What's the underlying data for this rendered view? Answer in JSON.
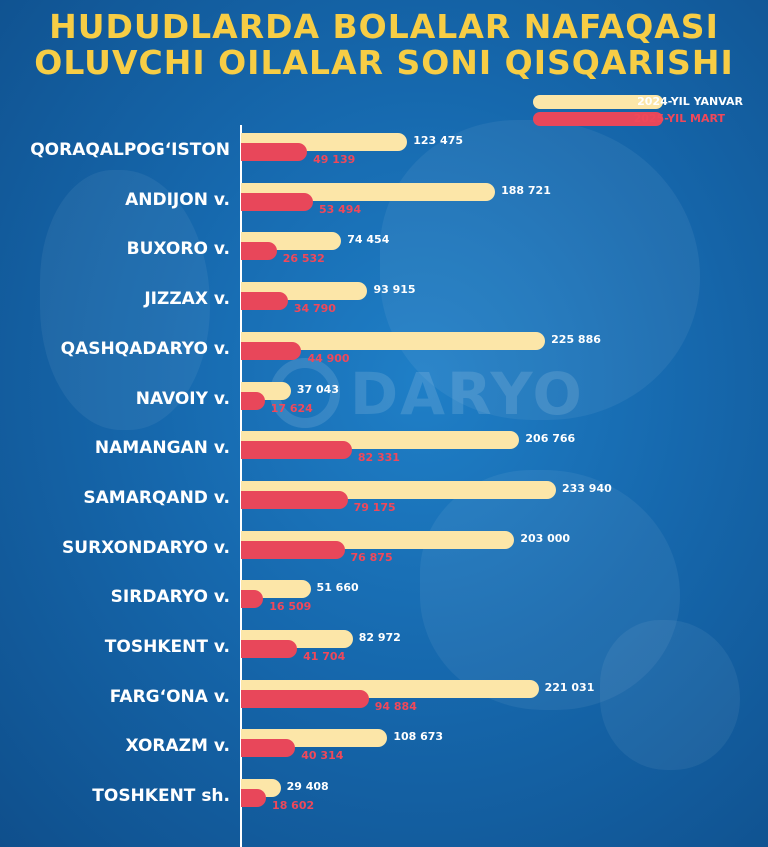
{
  "title_line1": "HUDUDLARDA BOLALAR NAFAQASI",
  "title_line2": "OLUVCHI OILALAR SONI QISQARISHI",
  "watermark": "DARYO",
  "colors": {
    "series1": "#fce6a8",
    "series2": "#e8475a",
    "title": "#f7cd45"
  },
  "chart_data": {
    "type": "bar",
    "orientation": "horizontal",
    "legend_position": "top-right",
    "categories": [
      "QORAQALPOG‘ISTON",
      "ANDIJON v.",
      "BUXORO v.",
      "JIZZAX v.",
      "QASHQADARYO v.",
      "NAVOIY v.",
      "NAMANGAN v.",
      "SAMARQAND v.",
      "SURXONDARYO v.",
      "SIRDARYO v.",
      "TOSHKENT v.",
      "FARG‘ONA v.",
      "XORAZM v.",
      "TOSHKENT sh."
    ],
    "series": [
      {
        "name": "2024-YIL YANVAR",
        "values": [
          123475,
          188721,
          74454,
          93915,
          225886,
          37043,
          206766,
          233940,
          203000,
          51660,
          82972,
          221031,
          108673,
          29408
        ],
        "labels": [
          "123 475",
          "188 721",
          "74 454",
          "93 915",
          "225 886",
          "37 043",
          "206 766",
          "233 940",
          "203 000",
          "51 660",
          "82 972",
          "221 031",
          "108 673",
          "29 408"
        ]
      },
      {
        "name": "2025-YIL MART",
        "values": [
          49139,
          53494,
          26532,
          34790,
          44900,
          17624,
          82331,
          79175,
          76875,
          16509,
          41704,
          94884,
          40314,
          18602
        ],
        "labels": [
          "49 139",
          "53 494",
          "26 532",
          "34 790",
          "44 900",
          "17 624",
          "82 331",
          "79 175",
          "76 875",
          "16 509",
          "41 704",
          "94 884",
          "40 314",
          "18 602"
        ]
      }
    ],
    "xlim": [
      0,
      240000
    ]
  }
}
